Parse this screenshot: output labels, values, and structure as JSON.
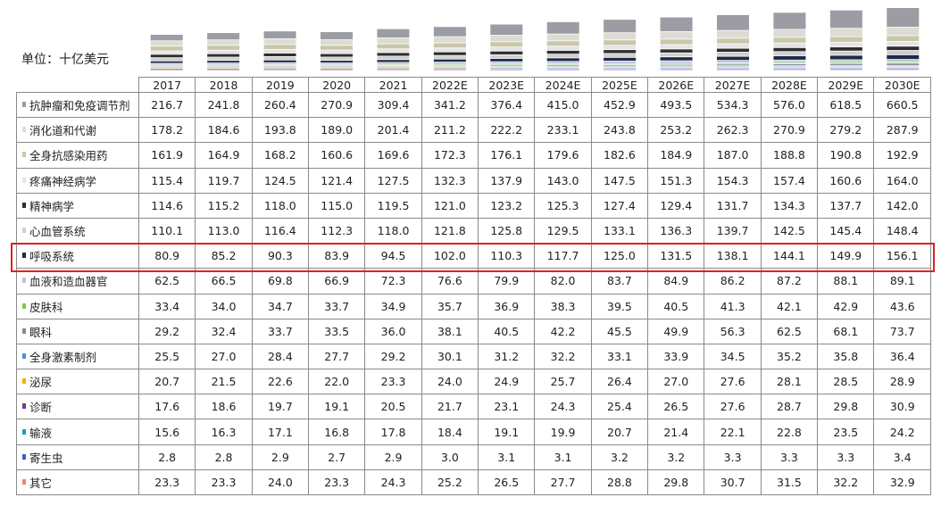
{
  "unit_label": "单位：十亿美元",
  "table": {
    "columns": [
      "2017",
      "2018",
      "2019",
      "2020",
      "2021",
      "2022E",
      "2023E",
      "2024E",
      "2025E",
      "2026E",
      "2027E",
      "2028E",
      "2029E",
      "2030E"
    ],
    "rows": [
      {
        "name": "抗肿瘤和免疫调节剂",
        "color": "#9c9ca4",
        "values": [
          "216.7",
          "241.8",
          "260.4",
          "270.9",
          "309.4",
          "341.2",
          "376.4",
          "415.0",
          "452.9",
          "493.5",
          "534.3",
          "576.0",
          "618.5",
          "660.5"
        ]
      },
      {
        "name": "消化道和代谢",
        "color": "#dcdcd4",
        "values": [
          "178.2",
          "184.6",
          "193.8",
          "189.0",
          "201.4",
          "211.2",
          "222.2",
          "233.1",
          "243.8",
          "253.2",
          "262.3",
          "270.9",
          "279.2",
          "287.9"
        ]
      },
      {
        "name": "全身抗感染用药",
        "color": "#c9c7a8",
        "values": [
          "161.9",
          "164.9",
          "168.2",
          "160.6",
          "169.6",
          "172.3",
          "176.1",
          "179.6",
          "182.6",
          "184.9",
          "187.0",
          "188.8",
          "190.8",
          "192.9"
        ]
      },
      {
        "name": "疼痛神经病学",
        "color": "#e4e4e4",
        "values": [
          "115.4",
          "119.7",
          "124.5",
          "121.4",
          "127.5",
          "132.3",
          "137.9",
          "143.0",
          "147.5",
          "151.3",
          "154.3",
          "157.4",
          "160.6",
          "164.0"
        ]
      },
      {
        "name": "精神病学",
        "color": "#2e2e2e",
        "values": [
          "114.6",
          "115.2",
          "118.0",
          "115.0",
          "119.5",
          "121.0",
          "123.2",
          "125.3",
          "127.4",
          "129.4",
          "131.7",
          "134.3",
          "137.7",
          "142.0"
        ]
      },
      {
        "name": "心血管系统",
        "color": "#cfcfcf",
        "values": [
          "110.1",
          "113.0",
          "116.4",
          "112.3",
          "118.0",
          "121.8",
          "125.8",
          "129.5",
          "133.1",
          "136.3",
          "139.7",
          "142.5",
          "145.4",
          "148.4"
        ]
      },
      {
        "name": "呼吸系统",
        "color": "#1f2a44",
        "values": [
          "80.9",
          "85.2",
          "90.3",
          "83.9",
          "94.5",
          "102.0",
          "110.3",
          "117.7",
          "125.0",
          "131.5",
          "138.1",
          "144.1",
          "149.9",
          "156.1"
        ]
      },
      {
        "name": "血液和造血器官",
        "color": "#b7c7da",
        "values": [
          "62.5",
          "66.5",
          "69.8",
          "66.9",
          "72.3",
          "76.6",
          "79.9",
          "82.0",
          "83.7",
          "84.9",
          "86.2",
          "87.2",
          "88.1",
          "89.1"
        ]
      },
      {
        "name": "皮肤科",
        "color": "#8bc34a",
        "values": [
          "33.4",
          "34.0",
          "34.7",
          "33.7",
          "34.9",
          "35.7",
          "36.9",
          "38.3",
          "39.5",
          "40.5",
          "41.3",
          "42.1",
          "42.9",
          "43.6"
        ]
      },
      {
        "name": "眼科",
        "color": "#8a8a8a",
        "values": [
          "29.2",
          "32.4",
          "33.7",
          "33.5",
          "36.0",
          "38.1",
          "40.5",
          "42.2",
          "45.5",
          "49.9",
          "56.3",
          "62.5",
          "68.1",
          "73.7"
        ]
      },
      {
        "name": "全身激素制剂",
        "color": "#4a90d9",
        "values": [
          "25.5",
          "27.0",
          "28.4",
          "27.7",
          "29.2",
          "30.1",
          "31.2",
          "32.2",
          "33.1",
          "33.9",
          "34.5",
          "35.2",
          "35.8",
          "36.4"
        ]
      },
      {
        "name": "泌尿",
        "color": "#f0b400",
        "values": [
          "20.7",
          "21.5",
          "22.6",
          "22.0",
          "23.3",
          "24.0",
          "24.9",
          "25.7",
          "26.4",
          "27.0",
          "27.6",
          "28.1",
          "28.5",
          "28.9"
        ]
      },
      {
        "name": "诊断",
        "color": "#6a3d9a",
        "values": [
          "17.6",
          "18.6",
          "19.7",
          "19.1",
          "20.5",
          "21.7",
          "23.1",
          "24.3",
          "25.4",
          "26.5",
          "27.6",
          "28.7",
          "29.8",
          "30.9"
        ]
      },
      {
        "name": "输液",
        "color": "#17a2b8",
        "values": [
          "15.6",
          "16.3",
          "17.1",
          "16.8",
          "17.8",
          "18.4",
          "19.1",
          "19.9",
          "20.7",
          "21.4",
          "22.1",
          "22.8",
          "23.5",
          "24.2"
        ]
      },
      {
        "name": "寄生虫",
        "color": "#3a5fcd",
        "values": [
          "2.8",
          "2.8",
          "2.9",
          "2.7",
          "2.9",
          "3.0",
          "3.1",
          "3.1",
          "3.2",
          "3.2",
          "3.3",
          "3.3",
          "3.3",
          "3.4"
        ]
      },
      {
        "name": "其它",
        "color": "#f08080",
        "values": [
          "23.3",
          "23.3",
          "24.0",
          "23.3",
          "24.3",
          "25.2",
          "26.5",
          "27.7",
          "28.8",
          "29.8",
          "30.7",
          "31.5",
          "32.2",
          "32.9"
        ]
      }
    ]
  }
}
